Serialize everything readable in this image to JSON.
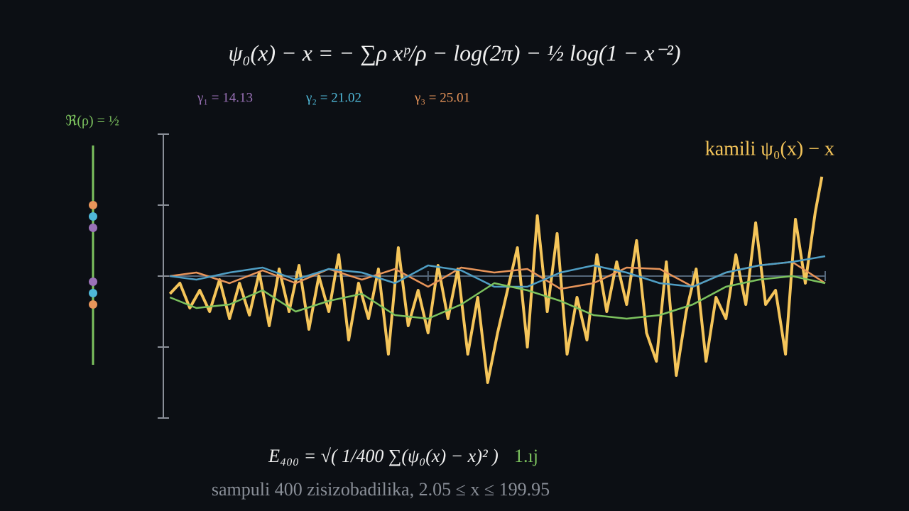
{
  "header": {
    "formula": "ψ₀(x) − x = − ∑ρ xᵖ/ρ − log(2π) − ½ log(1 − x⁻²)"
  },
  "gammas": [
    {
      "label": "γ₁ = 14.13",
      "color": "#9b72b8"
    },
    {
      "label": "γ₂ = 21.02",
      "color": "#4fb8d8"
    },
    {
      "label": "γ₃ = 25.01",
      "color": "#e8955a"
    }
  ],
  "re_label": "ℜ(ρ) = ½",
  "chart_data": {
    "type": "line",
    "xlim": [
      0,
      200
    ],
    "xticks": [
      40,
      80,
      120,
      160,
      200
    ],
    "ylim": [
      -2,
      2
    ],
    "yticks": [
      -2,
      -1,
      0,
      1,
      2
    ],
    "series": [
      {
        "name": "kamili ψ₀(x) − x",
        "color": "#f5c55a",
        "x": [
          2,
          5,
          8,
          11,
          14,
          17,
          20,
          23,
          26,
          29,
          32,
          35,
          38,
          41,
          44,
          47,
          50,
          53,
          56,
          59,
          62,
          65,
          68,
          71,
          74,
          77,
          80,
          83,
          86,
          89,
          92,
          95,
          98,
          101,
          104,
          107,
          110,
          113,
          116,
          119,
          122,
          125,
          128,
          131,
          134,
          137,
          140,
          143,
          146,
          149,
          152,
          155,
          158,
          161,
          164,
          167,
          170,
          173,
          176,
          179,
          182,
          185,
          188,
          191,
          194,
          197,
          199
        ],
        "values": [
          -0.25,
          -0.1,
          -0.45,
          -0.2,
          -0.5,
          -0.05,
          -0.6,
          -0.1,
          -0.55,
          0.05,
          -0.7,
          0.1,
          -0.5,
          0.15,
          -0.75,
          0.0,
          -0.5,
          0.3,
          -0.9,
          -0.1,
          -0.6,
          0.1,
          -1.1,
          0.4,
          -0.7,
          -0.2,
          -0.8,
          0.15,
          -0.6,
          0.1,
          -1.1,
          -0.3,
          -1.5,
          -0.8,
          -0.2,
          0.4,
          -1.0,
          0.85,
          -0.5,
          0.6,
          -1.1,
          -0.3,
          -0.9,
          0.3,
          -0.5,
          0.2,
          -0.4,
          0.5,
          -0.8,
          -1.2,
          0.2,
          -1.4,
          -0.5,
          0.1,
          -1.2,
          -0.3,
          -0.6,
          0.3,
          -0.4,
          0.75,
          -0.4,
          -0.2,
          -1.1,
          0.8,
          -0.1,
          0.9,
          1.4
        ]
      },
      {
        "color": "#e8955a",
        "x": [
          2,
          10,
          20,
          30,
          40,
          50,
          60,
          70,
          80,
          90,
          100,
          110,
          120,
          130,
          140,
          150,
          160,
          170,
          180,
          190,
          200
        ],
        "values": [
          0,
          0.05,
          -0.1,
          0.08,
          -0.1,
          0.1,
          -0.05,
          0.1,
          -0.15,
          0.12,
          0.05,
          0.1,
          -0.18,
          -0.1,
          0.12,
          0.1,
          -0.15,
          0.05,
          0.15,
          0.2,
          -0.1
        ]
      },
      {
        "color": "#4f9ec4",
        "x": [
          2,
          10,
          20,
          30,
          40,
          50,
          60,
          70,
          80,
          90,
          100,
          110,
          120,
          130,
          140,
          150,
          160,
          170,
          180,
          190,
          200
        ],
        "values": [
          0,
          -0.05,
          0.05,
          0.12,
          -0.05,
          0.1,
          0.05,
          -0.1,
          0.15,
          0.08,
          -0.15,
          -0.15,
          0.05,
          0.15,
          0.05,
          -0.1,
          -0.15,
          0.05,
          0.15,
          0.2,
          0.28
        ]
      },
      {
        "color": "#7cc25e",
        "x": [
          2,
          10,
          20,
          30,
          40,
          50,
          60,
          70,
          80,
          90,
          100,
          110,
          120,
          130,
          140,
          150,
          160,
          170,
          180,
          190,
          200
        ],
        "values": [
          -0.3,
          -0.45,
          -0.4,
          -0.2,
          -0.5,
          -0.35,
          -0.25,
          -0.55,
          -0.6,
          -0.4,
          -0.1,
          -0.2,
          -0.35,
          -0.55,
          -0.6,
          -0.55,
          -0.4,
          -0.15,
          -0.05,
          0.0,
          -0.1
        ]
      }
    ]
  },
  "footer": {
    "formula": "E₄₀₀ = √( 1/400 ∑(ψ₀(x) − x)² )",
    "value": "1.ıj",
    "caption": "sampuli 400 zisizobadilika, 2.05 ≤ x ≤ 199.95"
  }
}
